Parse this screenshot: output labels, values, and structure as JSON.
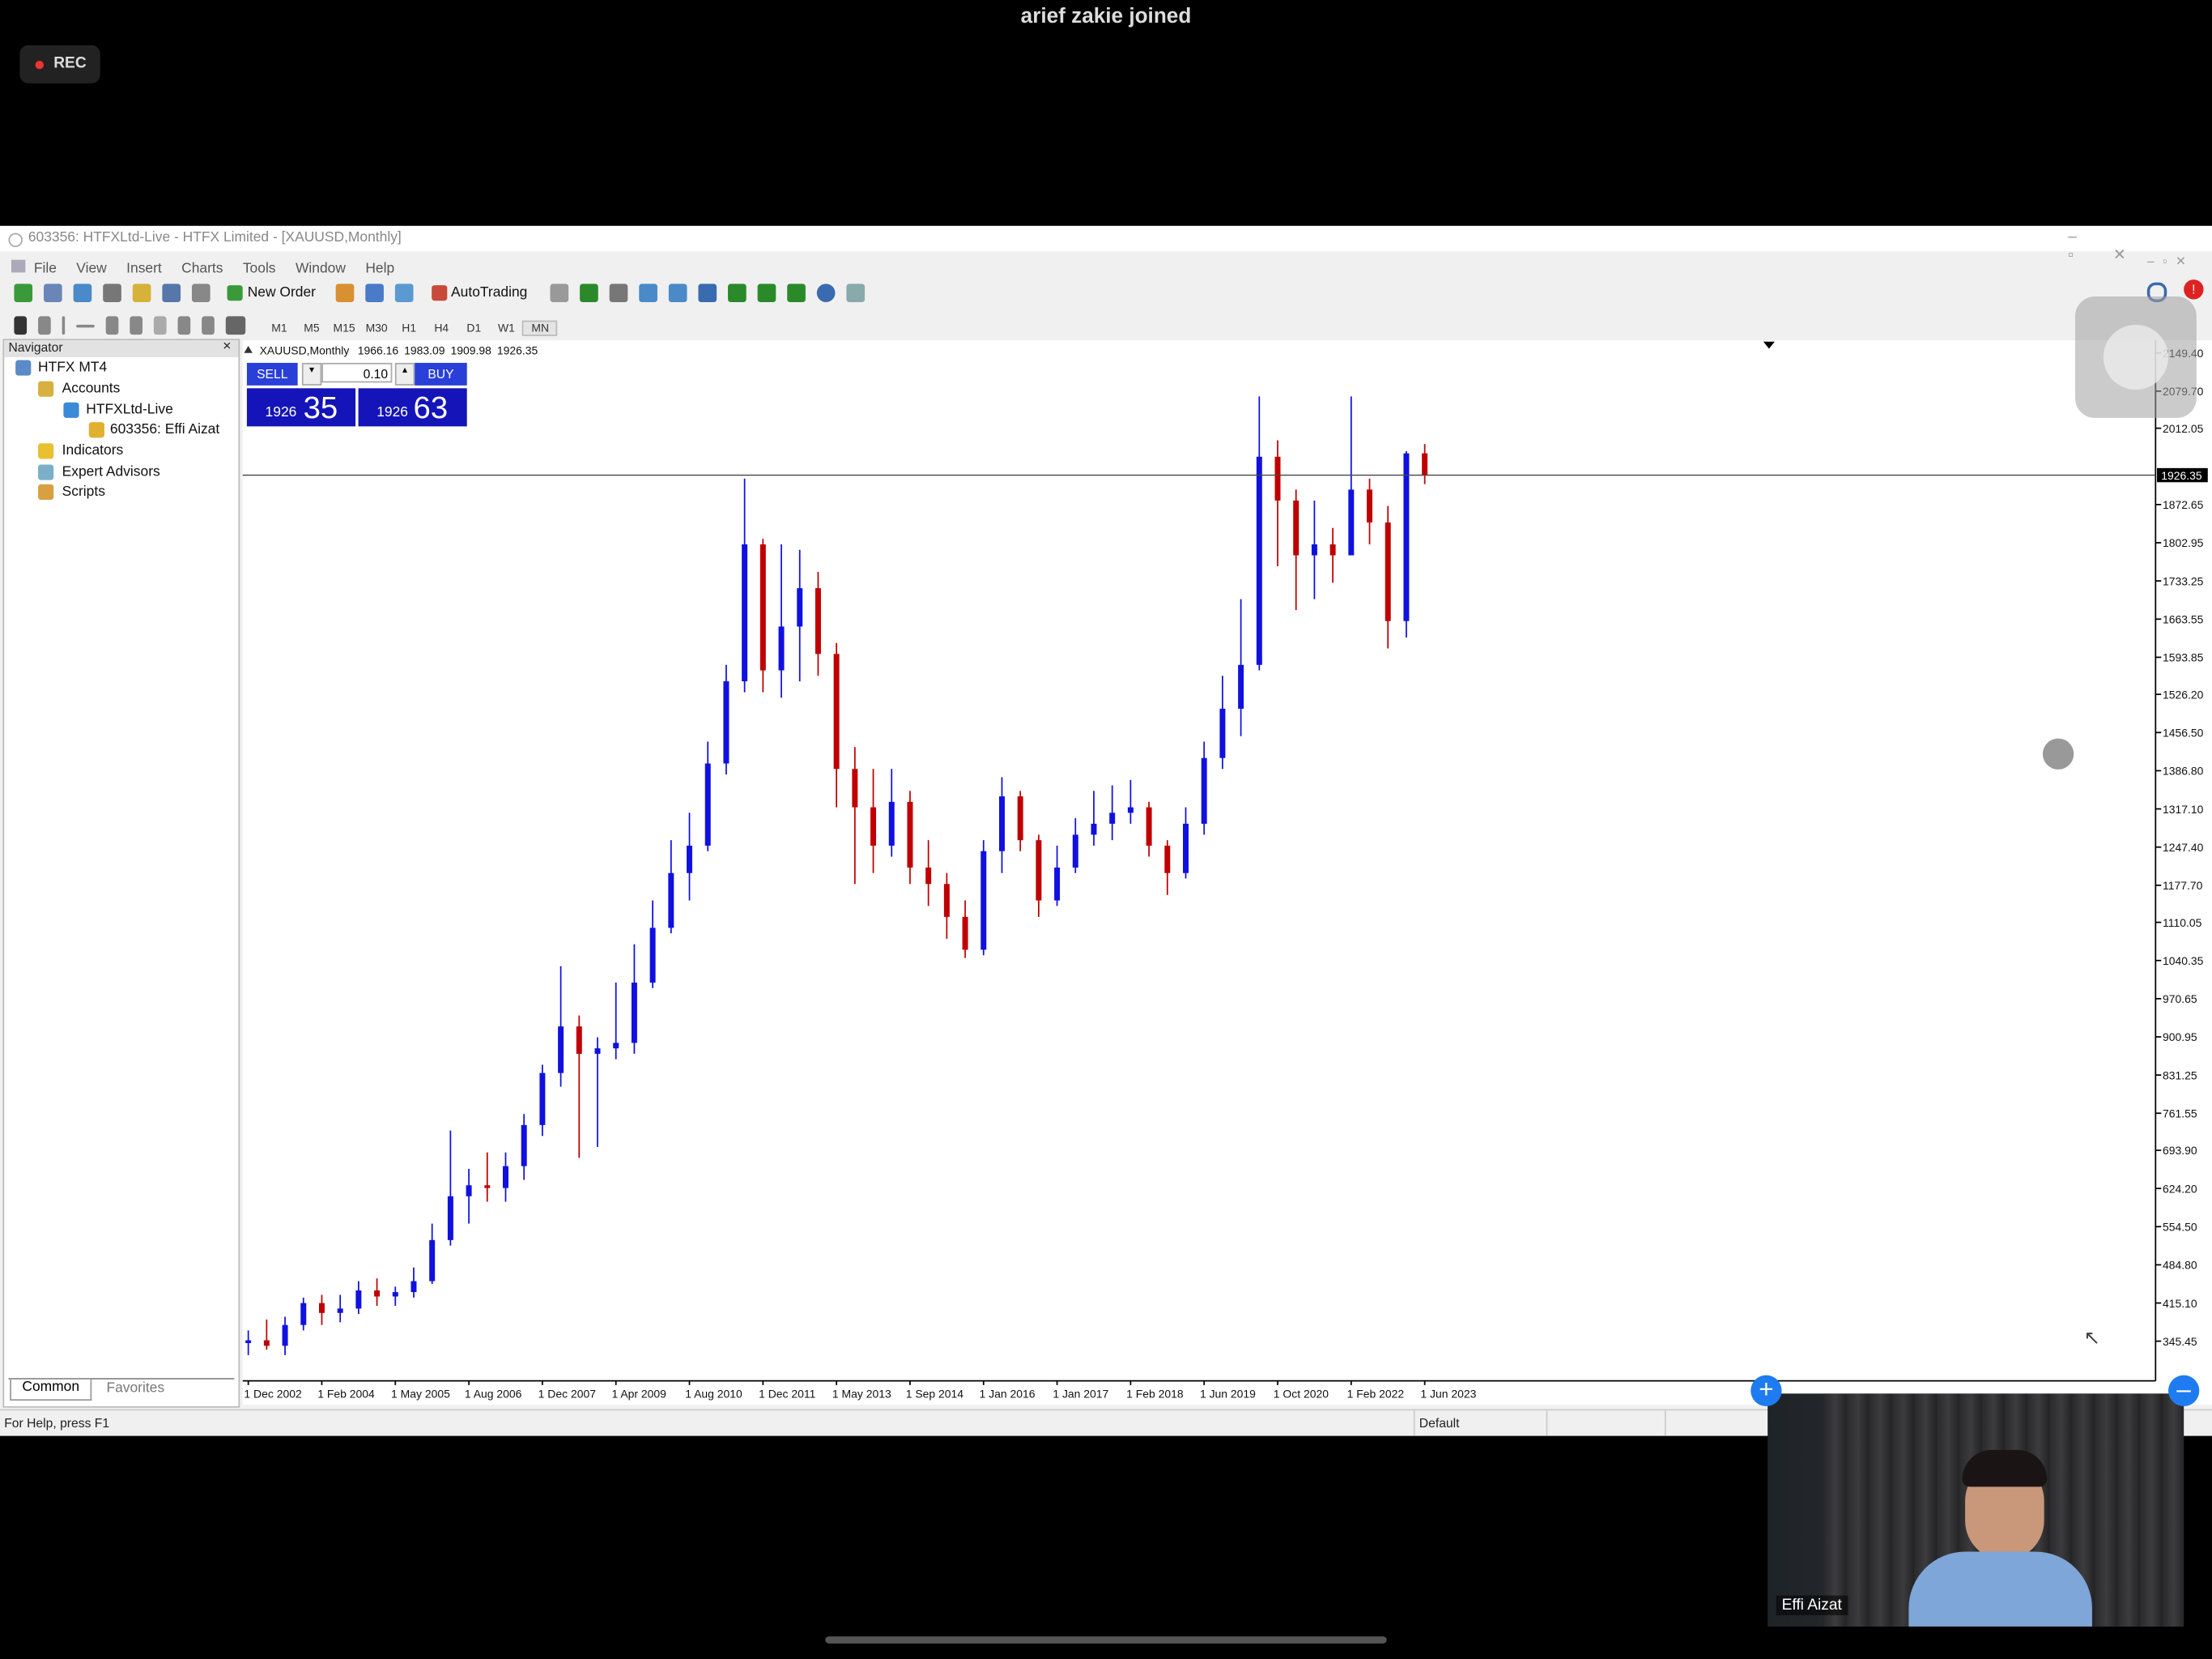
{
  "zoom": {
    "notice": "arief zakie joined",
    "rec": "REC",
    "participant": "Effi Aizat"
  },
  "window": {
    "title": "603356: HTFXLtd-Live - HTFX Limited - [XAUUSD,Monthly]",
    "menu": [
      "File",
      "View",
      "Insert",
      "Charts",
      "Tools",
      "Window",
      "Help"
    ],
    "toolbar": {
      "new_order": "New Order",
      "auto_trading": "AutoTrading"
    },
    "timeframes": [
      "M1",
      "M5",
      "M15",
      "M30",
      "H1",
      "H4",
      "D1",
      "W1",
      "MN"
    ]
  },
  "navigator": {
    "title": "Navigator",
    "tree": [
      "HTFX MT4",
      "Accounts",
      "HTFXLtd-Live",
      "603356: Effi Aizat",
      "Indicators",
      "Expert Advisors",
      "Scripts"
    ],
    "tabs": [
      "Common",
      "Favorites"
    ]
  },
  "trade_panel": {
    "sell": "SELL",
    "buy": "BUY",
    "lot": "0.10",
    "bid_big": "1926",
    "bid_small": "35",
    "ask_big": "1926",
    "ask_small": "63"
  },
  "status": {
    "help": "For Help, press F1",
    "profile": "Default"
  },
  "chart_data": {
    "type": "candlestick",
    "symbol": "XAUUSD,Monthly",
    "categories": [
      "1 Dec 2002",
      null,
      null,
      null,
      "1 Feb 2004",
      null,
      null,
      null,
      "1 May 2005",
      null,
      null,
      null,
      "1 Aug 2006",
      null,
      null,
      null,
      "1 Dec 2007",
      null,
      null,
      null,
      "1 Apr 2009",
      null,
      null,
      null,
      "1 Aug 2010",
      null,
      null,
      null,
      "1 Dec 2011",
      null,
      null,
      null,
      "1 May 2013",
      null,
      null,
      null,
      "1 Sep 2014",
      null,
      null,
      null,
      "1 Jan 2016",
      null,
      null,
      null,
      "1 Jan 2017",
      null,
      null,
      null,
      "1 Feb 2018",
      null,
      null,
      null,
      "1 Jun 2019",
      null,
      null,
      null,
      "1 Oct 2020",
      null,
      null,
      null,
      "1 Feb 2022",
      null,
      null,
      null,
      "1 Jun 2023"
    ],
    "open": [
      342,
      347,
      337,
      375,
      415,
      397,
      405,
      438,
      427,
      435,
      455,
      530,
      610,
      630,
      625,
      665,
      740,
      835,
      920,
      870,
      880,
      890,
      1000,
      1100,
      1200,
      1250,
      1400,
      1550,
      1800,
      1570,
      1650,
      1720,
      1600,
      1390,
      1320,
      1250,
      1330,
      1210,
      1180,
      1120,
      1060,
      1240,
      1340,
      1260,
      1150,
      1210,
      1270,
      1290,
      1310,
      1320,
      1250,
      1200,
      1290,
      1410,
      1500,
      1580,
      1960,
      1880,
      1780,
      1800,
      1780,
      1900,
      1840,
      1660,
      1966.16
    ],
    "high": [
      365,
      385,
      390,
      425,
      430,
      430,
      455,
      460,
      445,
      480,
      560,
      730,
      660,
      690,
      690,
      760,
      850,
      1030,
      940,
      900,
      1000,
      1070,
      1150,
      1260,
      1310,
      1440,
      1580,
      1920,
      1810,
      1800,
      1790,
      1750,
      1620,
      1430,
      1390,
      1390,
      1350,
      1260,
      1200,
      1150,
      1260,
      1375,
      1350,
      1270,
      1250,
      1300,
      1350,
      1360,
      1370,
      1330,
      1260,
      1320,
      1440,
      1560,
      1700,
      2070,
      1990,
      1900,
      1880,
      1830,
      2070,
      1920,
      1870,
      1970,
      1983.09
    ],
    "low": [
      320,
      330,
      320,
      365,
      375,
      380,
      395,
      410,
      410,
      425,
      450,
      520,
      560,
      600,
      600,
      640,
      720,
      810,
      680,
      700,
      860,
      870,
      990,
      1090,
      1150,
      1240,
      1380,
      1530,
      1530,
      1520,
      1550,
      1560,
      1320,
      1180,
      1200,
      1230,
      1180,
      1140,
      1080,
      1045,
      1050,
      1200,
      1240,
      1120,
      1140,
      1200,
      1250,
      1260,
      1290,
      1230,
      1160,
      1190,
      1270,
      1390,
      1450,
      1570,
      1760,
      1680,
      1700,
      1730,
      1780,
      1800,
      1610,
      1630,
      1909.98
    ],
    "close": [
      347,
      337,
      375,
      415,
      397,
      405,
      438,
      427,
      435,
      455,
      530,
      610,
      630,
      625,
      665,
      740,
      835,
      920,
      870,
      880,
      890,
      1000,
      1100,
      1200,
      1250,
      1400,
      1550,
      1800,
      1570,
      1650,
      1720,
      1600,
      1390,
      1320,
      1250,
      1330,
      1210,
      1180,
      1120,
      1060,
      1240,
      1340,
      1260,
      1150,
      1210,
      1270,
      1290,
      1310,
      1320,
      1250,
      1200,
      1290,
      1410,
      1500,
      1580,
      1960,
      1880,
      1780,
      1800,
      1780,
      1900,
      1840,
      1660,
      1966.16,
      1926.35
    ],
    "up_color": "#1010e0",
    "down_color": "#c00000",
    "current_price_line": true,
    "ylim": [
      273,
      2170
    ],
    "yticks": [
      {
        "value": 2149.4,
        "label": "2149.40"
      },
      {
        "value": 2079.7,
        "label": "2079.70"
      },
      2012.05,
      1872.65,
      1802.95,
      1733.25,
      1663.55,
      1593.85,
      {
        "value": 1526.2,
        "label": "1526.20"
      },
      {
        "value": 1456.5,
        "label": "1456.50"
      },
      {
        "value": 1386.8,
        "label": "1386.80"
      },
      {
        "value": 1317.1,
        "label": "1317.10"
      },
      {
        "value": 1247.4,
        "label": "1247.40"
      },
      {
        "value": 1177.7,
        "label": "1177.70"
      },
      1110.05,
      1040.35,
      970.65,
      900.95,
      831.25,
      761.55,
      {
        "value": 693.9,
        "label": "693.90"
      },
      {
        "value": 624.2,
        "label": "624.20"
      },
      {
        "value": 554.5,
        "label": "554.50"
      },
      {
        "value": 484.8,
        "label": "484.80"
      },
      {
        "value": 415.1,
        "label": "415.10"
      },
      345.45
    ]
  }
}
